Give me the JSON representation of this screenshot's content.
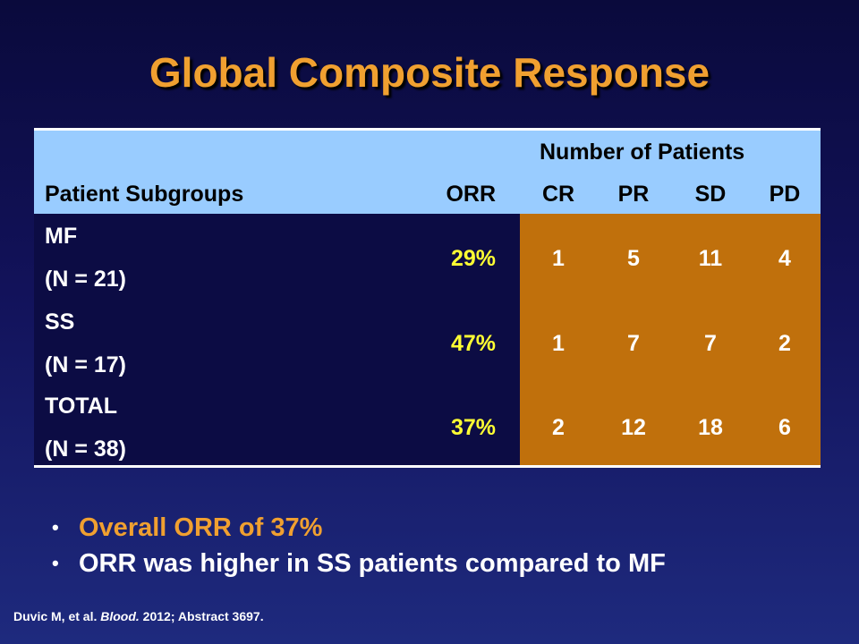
{
  "title": "Global Composite Response",
  "table": {
    "group_header": "Number of Patients",
    "headers": {
      "subgroups": "Patient Subgroups",
      "orr": "ORR",
      "cr": "CR",
      "pr": "PR",
      "sd": "SD",
      "pd": "PD"
    },
    "rows": [
      {
        "name": "MF",
        "n": "(N = 21)",
        "orr": "29%",
        "cr": "1",
        "pr": "5",
        "sd": "11",
        "pd": "4"
      },
      {
        "name": "SS",
        "n": "(N = 17)",
        "orr": "47%",
        "cr": "1",
        "pr": "7",
        "sd": "7",
        "pd": "2"
      },
      {
        "name": "TOTAL",
        "n": "(N = 38)",
        "orr": "37%",
        "cr": "2",
        "pr": "12",
        "sd": "18",
        "pd": "6"
      }
    ]
  },
  "bullets": [
    "Overall ORR of 37%",
    "ORR was higher in SS patients compared to MF"
  ],
  "footer": {
    "authors": "Duvic M, et al. ",
    "journal": "Blood.",
    "citation": " 2012; Abstract 3697."
  },
  "colors": {
    "title": "#f0a030",
    "header_bg": "#99ccff",
    "highlight_bg": "#c0700c",
    "orr_text": "#ffff33"
  }
}
